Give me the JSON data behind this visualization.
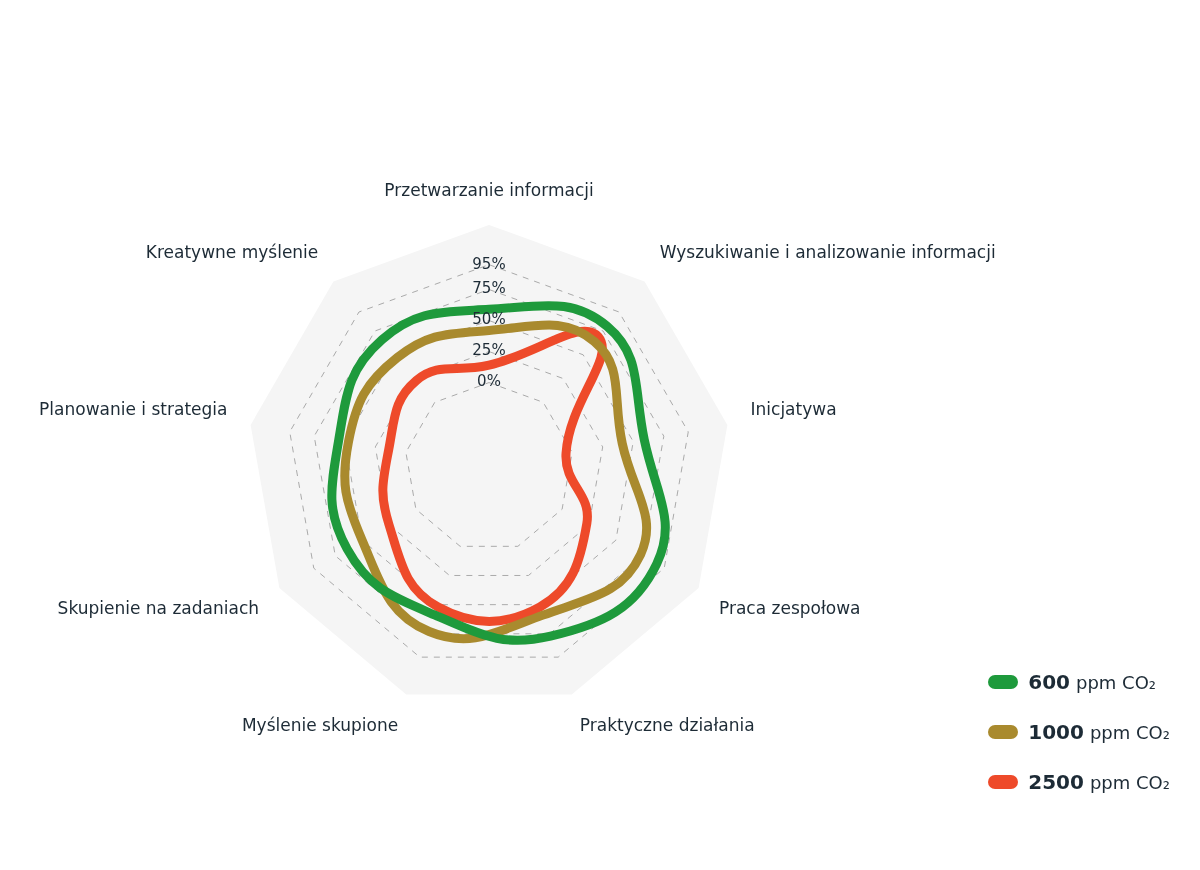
{
  "chart_data": {
    "type": "radar",
    "categories": [
      "Przetwarzanie informacji",
      "Wyszukiwanie i analizowanie informacji",
      "Inicjatywa",
      "Praca zespołowa",
      "Praktyczne działania",
      "Myślenie skupione",
      "Skupienie na zadaniach",
      "Planowanie i strategia",
      "Kreatywne myślenie"
    ],
    "series": [
      {
        "name": "600 ppm CO₂",
        "color": "#1e9a3c",
        "values": [
          59,
          80,
          59,
          88,
          77,
          59,
          64,
          55,
          66
        ]
      },
      {
        "name": "1000 ppm CO₂",
        "color": "#a98a2e",
        "values": [
          42,
          64,
          41,
          73,
          59,
          73,
          50,
          47,
          47
        ]
      },
      {
        "name": "2500 ppm CO₂",
        "color": "#ee4a2a",
        "values": [
          14,
          69,
          -5,
          23,
          52,
          52,
          25,
          14,
          23
        ]
      }
    ],
    "ylim": [
      -68,
      127
    ],
    "yticks": [
      {
        "value": 0,
        "label": "0%"
      },
      {
        "value": 25,
        "label": "25%"
      },
      {
        "value": 50,
        "label": "50%"
      },
      {
        "value": 75,
        "label": "75%"
      },
      {
        "value": 95,
        "label": "95%"
      }
    ],
    "grid": true,
    "legend": "bottom right",
    "marker": "none",
    "line_style": "solid"
  }
}
